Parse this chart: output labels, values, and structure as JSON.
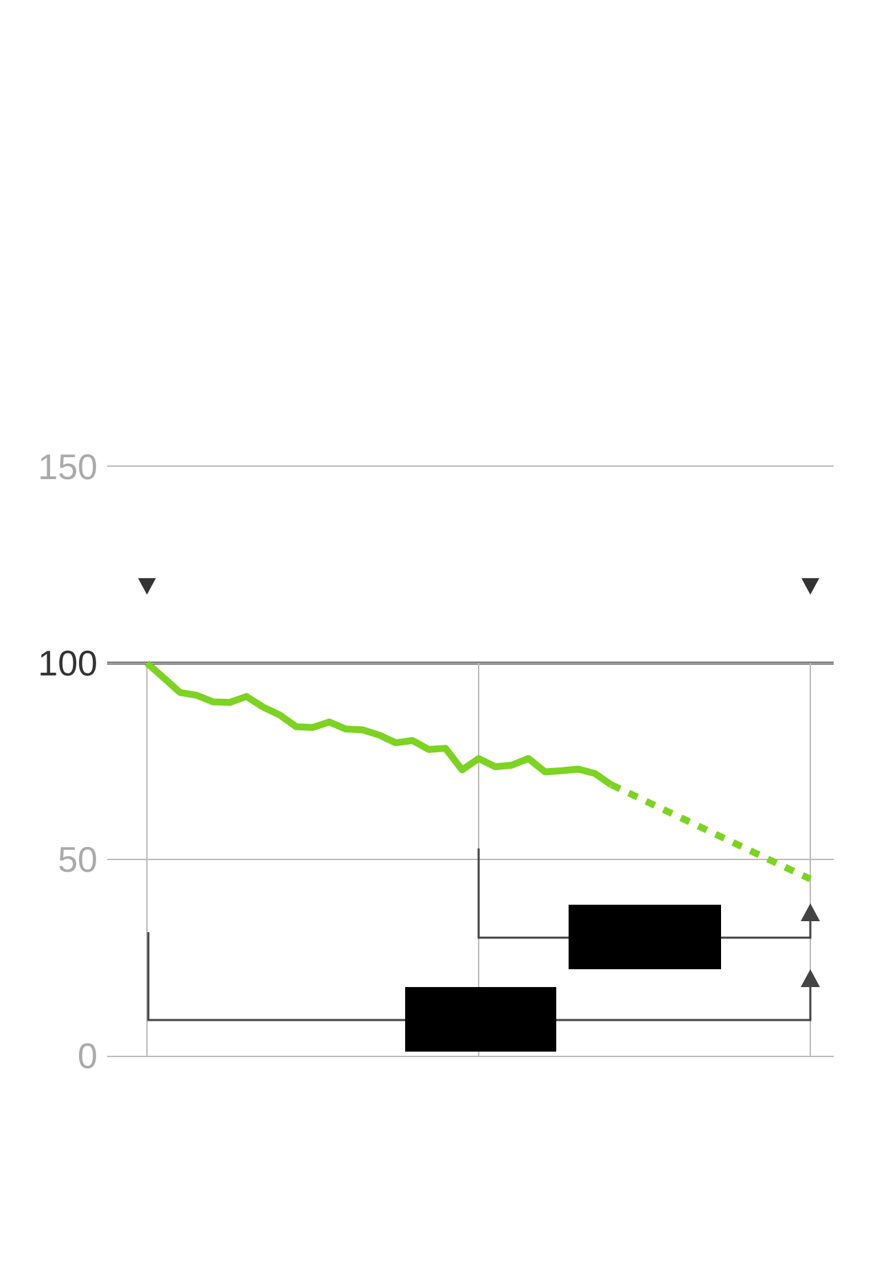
{
  "chart_data": {
    "type": "line",
    "categories": [
      null,
      null,
      null,
      null,
      null,
      null,
      null,
      null,
      null,
      null,
      null,
      null,
      null,
      null,
      null,
      null,
      null,
      null,
      null,
      null,
      null,
      null,
      null,
      null,
      null,
      null,
      null,
      null,
      null,
      null,
      null,
      null,
      null,
      null,
      null,
      null,
      null,
      null,
      null,
      null,
      null
    ],
    "series": [
      {
        "color": "#7dd321",
        "values": [
          100,
          96.3,
          92.5,
          91.8,
          90.1,
          90.0,
          91.5,
          88.8,
          86.8,
          83.8,
          83.6,
          85.0,
          83.2,
          83.0,
          81.7,
          79.7,
          80.3,
          78.0,
          78.3,
          72.8,
          75.7,
          73.6,
          74.0,
          75.7,
          72.3,
          72.6,
          73.0,
          71.9,
          69.0,
          null,
          null,
          null,
          null,
          null,
          null,
          null,
          null,
          null,
          null,
          null,
          null
        ]
      },
      {
        "color": "#7dd321",
        "line_style": "dashed",
        "values": [
          null,
          null,
          null,
          null,
          null,
          null,
          null,
          null,
          null,
          null,
          null,
          null,
          null,
          null,
          null,
          null,
          null,
          null,
          null,
          null,
          null,
          null,
          null,
          null,
          null,
          null,
          null,
          null,
          69,
          67,
          65,
          63,
          61,
          59,
          57,
          55,
          53,
          51,
          49,
          47,
          45
        ]
      }
    ],
    "line_style": "solid",
    "ylim": [
      0,
      150
    ],
    "yticks": [
      0,
      50,
      100,
      150
    ],
    "grid": "y",
    "tick_labels": "y",
    "ref_lines": [
      {
        "axis": "y",
        "value": 100,
        "color": "#333333"
      }
    ]
  }
}
